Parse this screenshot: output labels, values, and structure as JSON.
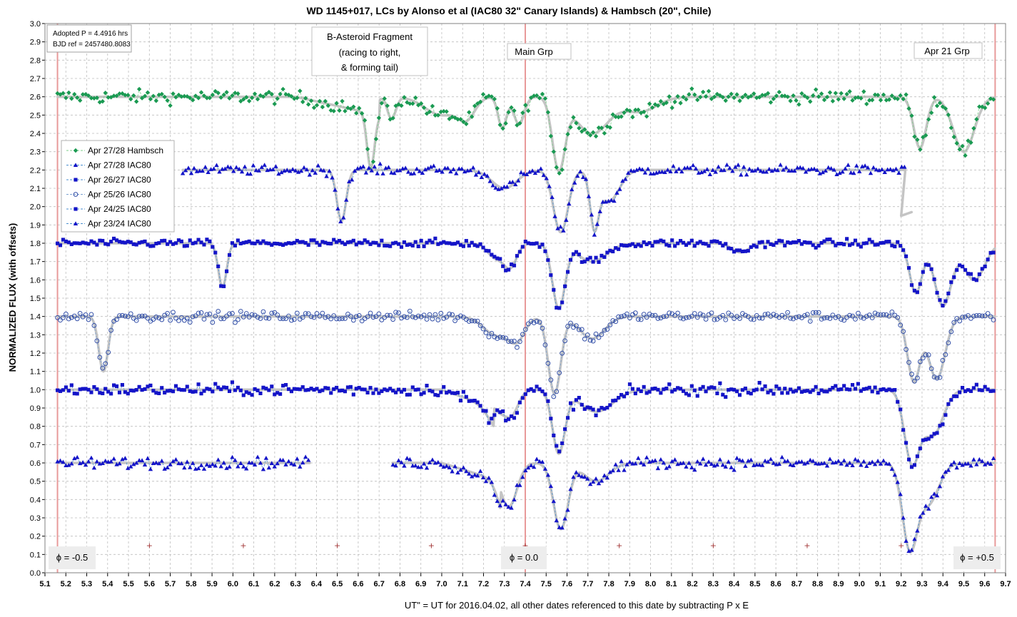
{
  "chart_data": {
    "type": "scatter",
    "title": "WD 1145+017,  LCs by Alonso et al (IAC80 32\" Canary Islands) & Hambsch (20\", Chile)",
    "xlabel": "UT\" = UT for 2016.04.02, all other dates referenced to this date by subtracting P x E",
    "ylabel": "NORMALIZED FLUX (with offsets)",
    "xlim": [
      5.1,
      9.7
    ],
    "ylim": [
      0.0,
      3.0
    ],
    "x_tick_step": 0.1,
    "y_tick_step": 0.1,
    "grid": true,
    "legend_position": "left",
    "info_box": [
      "Adopted P = 4.4916 hrs",
      "BJD ref = 2457480.8083"
    ],
    "annotations": {
      "b_asteroid": [
        "B-Asteroid Fragment",
        "(racing to right,",
        "& forming tail)"
      ],
      "main_grp": "Main Grp",
      "apr21_grp": "Apr 21 Grp",
      "phase_left": "ϕ = -0.5",
      "phase_mid": "ϕ = 0.0",
      "phase_right": "ϕ = +0.5"
    },
    "vertical_lines_x": [
      5.16,
      7.4,
      9.65
    ],
    "plus_markers": {
      "x": [
        5.6,
        6.05,
        6.5,
        6.95,
        7.4,
        7.85,
        8.3,
        8.75,
        9.2
      ],
      "y": 0.15
    },
    "series": [
      {
        "name": "Apr 27/28 Hambsch",
        "marker": "diamond",
        "color": "#1a9a52",
        "line": "#7ccf8a",
        "baseline": 2.6,
        "x_range": [
          5.16,
          9.65
        ],
        "noise": 0.035,
        "dips": [
          [
            6.66,
            0.3,
            0.018
          ],
          [
            6.76,
            0.12,
            0.02
          ],
          [
            7.0,
            0.1,
            0.08
          ],
          [
            7.12,
            0.1,
            0.04
          ],
          [
            7.29,
            0.17,
            0.02
          ],
          [
            7.37,
            0.15,
            0.025
          ],
          [
            7.56,
            0.38,
            0.03
          ],
          [
            7.72,
            0.2,
            0.08
          ],
          [
            7.95,
            0.08,
            0.08
          ],
          [
            9.29,
            0.28,
            0.03
          ],
          [
            9.5,
            0.3,
            0.05
          ]
        ],
        "tilts": [
          [
            6.3,
            6.7,
            0.1
          ]
        ]
      },
      {
        "name": "Apr 27/28 IAC80",
        "marker": "triangle",
        "color": "#1414c8",
        "line": "#4a8fd0",
        "baseline": 2.2,
        "x_range": [
          5.76,
          9.22
        ],
        "noise": 0.025,
        "dips": [
          [
            6.52,
            0.28,
            0.022
          ],
          [
            7.3,
            0.1,
            0.06
          ],
          [
            7.57,
            0.34,
            0.035
          ],
          [
            7.73,
            0.27,
            0.02
          ],
          [
            7.8,
            0.17,
            0.05
          ]
        ],
        "tilts": [],
        "cutoff_x": 9.2,
        "cutoff_y": 1.95
      },
      {
        "name": "Apr 26/27 IAC80",
        "marker": "square",
        "color": "#1414c8",
        "line": "#4a8fd0",
        "baseline": 1.8,
        "x_range": [
          5.16,
          9.65
        ],
        "noise": 0.02,
        "dips": [
          [
            5.95,
            0.24,
            0.02
          ],
          [
            7.26,
            0.08,
            0.04
          ],
          [
            7.33,
            0.12,
            0.03
          ],
          [
            7.56,
            0.35,
            0.03
          ],
          [
            7.72,
            0.1,
            0.07
          ],
          [
            8.43,
            0.05,
            0.04
          ],
          [
            9.27,
            0.27,
            0.03
          ],
          [
            9.4,
            0.34,
            0.04
          ],
          [
            9.55,
            0.2,
            0.05
          ]
        ],
        "tilts": []
      },
      {
        "name": "Apr 25/26 IAC80",
        "marker": "circle",
        "color": "#334fa8",
        "line": "#7ba0d0",
        "baseline": 1.4,
        "x_range": [
          5.16,
          9.65
        ],
        "noise": 0.025,
        "dips": [
          [
            5.38,
            0.3,
            0.022
          ],
          [
            7.26,
            0.1,
            0.06
          ],
          [
            7.36,
            0.12,
            0.04
          ],
          [
            7.54,
            0.42,
            0.03
          ],
          [
            7.72,
            0.12,
            0.06
          ],
          [
            9.26,
            0.35,
            0.03
          ],
          [
            9.37,
            0.34,
            0.04
          ]
        ],
        "tilts": []
      },
      {
        "name": "Apr 24/25 IAC80",
        "marker": "square",
        "color": "#1414c8",
        "line": "#4a8fd0",
        "baseline": 1.0,
        "x_range": [
          5.16,
          9.65
        ],
        "noise": 0.03,
        "dips": [
          [
            7.28,
            0.12,
            0.05
          ],
          [
            7.34,
            0.08,
            0.03
          ],
          [
            7.56,
            0.34,
            0.03
          ],
          [
            7.74,
            0.12,
            0.08
          ],
          [
            9.25,
            0.38,
            0.035
          ],
          [
            9.35,
            0.25,
            0.05
          ]
        ],
        "tilts": [
          [
            7.0,
            7.25,
            0.1
          ]
        ]
      },
      {
        "name": "Apr 23/24 IAC80",
        "marker": "triangle",
        "color": "#1414c8",
        "line": "#4a8fd0",
        "baseline": 0.6,
        "x_range": [
          5.16,
          9.65
        ],
        "noise": 0.03,
        "dips": [
          [
            7.32,
            0.24,
            0.04
          ],
          [
            7.57,
            0.36,
            0.035
          ],
          [
            7.74,
            0.1,
            0.06
          ],
          [
            9.24,
            0.44,
            0.035
          ],
          [
            9.33,
            0.22,
            0.05
          ]
        ],
        "tilts": [
          [
            7.0,
            7.28,
            0.1
          ]
        ],
        "gap": [
          6.37,
          6.76
        ]
      }
    ]
  }
}
